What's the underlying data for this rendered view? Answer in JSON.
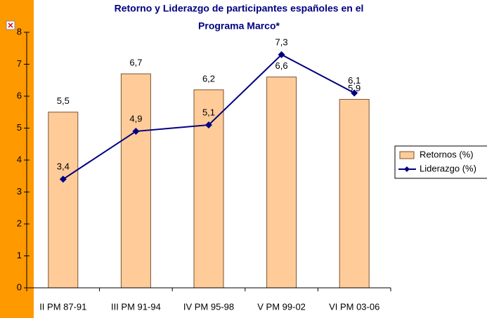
{
  "chart_data": {
    "type": "bar_line",
    "title": "Retorno y Liderazgo de participantes españoles en el",
    "subtitle": "Programa Marco*",
    "categories": [
      "II PM 87-91",
      "III PM 91-94",
      "IV PM 95-98",
      "V PM 99-02",
      "VI PM 03-06"
    ],
    "series": [
      {
        "name": "Retornos (%)",
        "type": "bar",
        "color": "#ffcc99",
        "values": [
          5.5,
          6.7,
          6.2,
          6.6,
          5.9
        ],
        "value_labels": [
          "5,5",
          "6,7",
          "6,2",
          "6,6",
          "5,9"
        ]
      },
      {
        "name": "Liderazgo (%)",
        "type": "line",
        "color": "#000080",
        "values": [
          3.4,
          4.9,
          5.1,
          7.3,
          6.1
        ],
        "value_labels": [
          "3,4",
          "4,9",
          "5,1",
          "7,3",
          "6,1"
        ]
      }
    ],
    "ylim": [
      0,
      8
    ],
    "yticks": [
      0,
      1,
      2,
      3,
      4,
      5,
      6,
      7,
      8
    ],
    "legend": "right"
  }
}
